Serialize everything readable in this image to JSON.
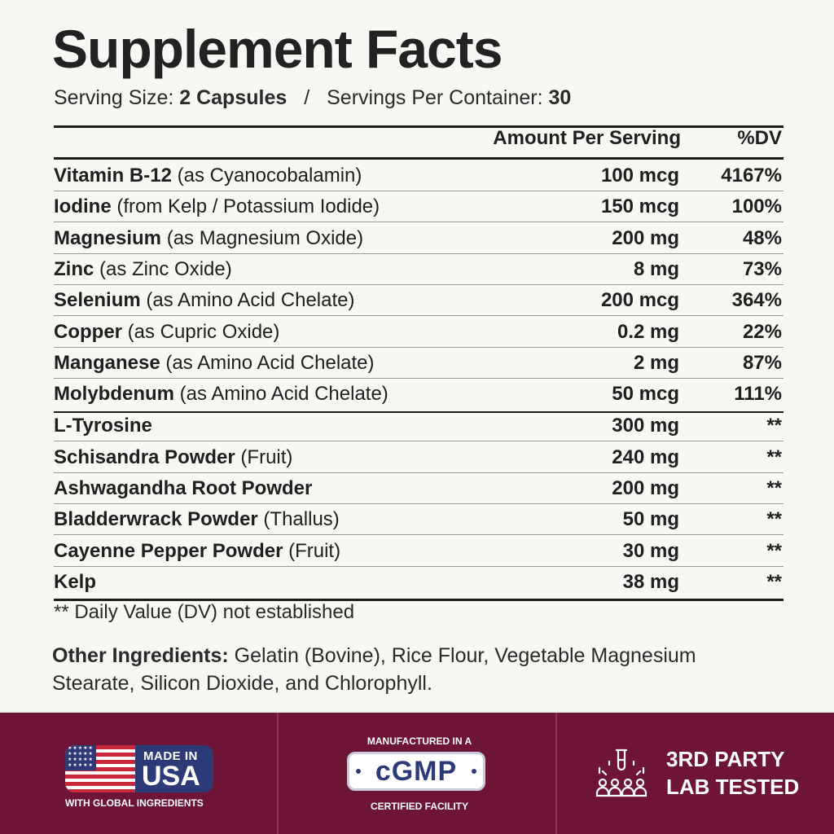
{
  "title": "Supplement Facts",
  "serving": {
    "size_label": "Serving Size:",
    "size_value": "2 Capsules",
    "separator": "/",
    "per_container_label": "Servings Per Container:",
    "per_container_value": "30"
  },
  "table": {
    "header_amount": "Amount Per Serving",
    "header_dv": "%DV",
    "rows": [
      {
        "name": "Vitamin B-12",
        "qualifier": "(as Cyanocobalamin)",
        "amount": "100 mcg",
        "dv": "4167%"
      },
      {
        "name": "Iodine",
        "qualifier": "(from Kelp / Potassium Iodide)",
        "amount": "150 mcg",
        "dv": "100%"
      },
      {
        "name": "Magnesium",
        "qualifier": "(as Magnesium Oxide)",
        "amount": "200 mg",
        "dv": "48%"
      },
      {
        "name": "Zinc",
        "qualifier": "(as Zinc Oxide)",
        "amount": "8 mg",
        "dv": "73%"
      },
      {
        "name": "Selenium",
        "qualifier": "(as Amino Acid Chelate)",
        "amount": "200 mcg",
        "dv": "364%"
      },
      {
        "name": "Copper",
        "qualifier": "(as Cupric Oxide)",
        "amount": "0.2 mg",
        "dv": "22%"
      },
      {
        "name": "Manganese",
        "qualifier": "(as Amino Acid Chelate)",
        "amount": "2 mg",
        "dv": "87%"
      },
      {
        "name": "Molybdenum",
        "qualifier": "(as Amino Acid Chelate)",
        "amount": "50 mcg",
        "dv": "111%"
      },
      {
        "name": "L-Tyrosine",
        "qualifier": "",
        "amount": "300 mg",
        "dv": "**"
      },
      {
        "name": "Schisandra Powder",
        "qualifier": "(Fruit)",
        "amount": "240 mg",
        "dv": "**"
      },
      {
        "name": "Ashwagandha Root Powder",
        "qualifier": "",
        "amount": "200 mg",
        "dv": "**"
      },
      {
        "name": "Bladderwrack Powder",
        "qualifier": "(Thallus)",
        "amount": "50 mg",
        "dv": "**"
      },
      {
        "name": "Cayenne Pepper Powder",
        "qualifier": "(Fruit)",
        "amount": "30 mg",
        "dv": "**"
      },
      {
        "name": "Kelp",
        "qualifier": "",
        "amount": "38 mg",
        "dv": "**"
      }
    ]
  },
  "footnote": "** Daily Value (DV) not established",
  "other_ingredients": {
    "label": "Other Ingredients:",
    "text": "Gelatin (Bovine), Rice Flour, Vegetable Magnesium Stearate, Silicon Dioxide, and Chlorophyll."
  },
  "badges": {
    "usa_top": "MADE IN",
    "usa_main": "USA",
    "usa_caption": "WITH GLOBAL INGREDIENTS",
    "cgmp_top": "MANUFACTURED IN A",
    "cgmp_main": "cGMP",
    "cgmp_bottom": "CERTIFIED FACILITY",
    "lab_line1": "3RD PARTY",
    "lab_line2": "LAB TESTED"
  },
  "colors": {
    "background": "#f8f7f3",
    "band": "#6e1537",
    "navy": "#2d3a78",
    "flag_red": "#c8283a"
  }
}
